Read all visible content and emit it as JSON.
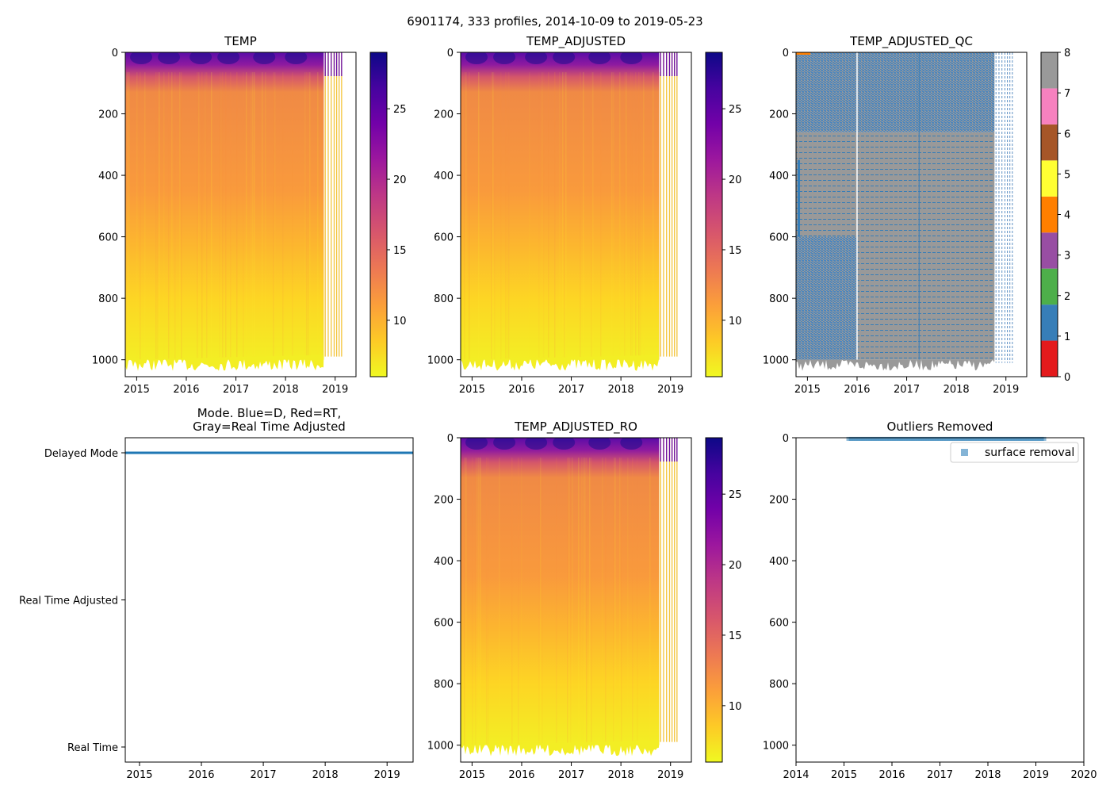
{
  "figure": {
    "suptitle": "6901174, 333 profiles, 2014-10-09 to 2019-05-23"
  },
  "colors": {
    "plasma": [
      "#f0f921",
      "#fdca26",
      "#fb9f3a",
      "#ed7953",
      "#d8576b",
      "#bd3786",
      "#9c179e",
      "#7201a8",
      "#46039f",
      "#0d0887"
    ],
    "qc": [
      "#e41a1c",
      "#377eb8",
      "#4daf4a",
      "#984ea3",
      "#ff7f00",
      "#ffff33",
      "#a65628",
      "#f781bf",
      "#999999"
    ],
    "mode_line": "#1f77b4",
    "outlier_marker": "#1f77b4"
  },
  "chart_data": [
    {
      "id": "temp",
      "type": "heatmap",
      "title": "TEMP",
      "xlim": [
        2014.77,
        2019.42
      ],
      "ylim": [
        1055,
        0
      ],
      "x_ticks": [
        2015,
        2016,
        2017,
        2018,
        2019
      ],
      "x_tick_labels": [
        "2015",
        "2016",
        "2017",
        "2018",
        "2019"
      ],
      "y_ticks": [
        0,
        200,
        400,
        600,
        800,
        1000
      ],
      "y_tick_labels": [
        "0",
        "200",
        "400",
        "600",
        "800",
        "1000"
      ],
      "colorbar": {
        "range": [
          6,
          29
        ],
        "ticks": [
          10,
          15,
          20,
          25
        ],
        "tick_labels": [
          "10",
          "15",
          "20",
          "25"
        ]
      },
      "data_end": 2018.77,
      "tail_profiles": [
        2018.8,
        2018.86,
        2018.92,
        2018.98,
        2019.03,
        2019.08,
        2019.13
      ],
      "bottom_depth": 1000
    },
    {
      "id": "temp-adjusted",
      "type": "heatmap",
      "title": "TEMP_ADJUSTED",
      "xlim": [
        2014.77,
        2019.42
      ],
      "ylim": [
        1055,
        0
      ],
      "x_ticks": [
        2015,
        2016,
        2017,
        2018,
        2019
      ],
      "x_tick_labels": [
        "2015",
        "2016",
        "2017",
        "2018",
        "2019"
      ],
      "y_ticks": [
        0,
        200,
        400,
        600,
        800,
        1000
      ],
      "y_tick_labels": [
        "0",
        "200",
        "400",
        "600",
        "800",
        "1000"
      ],
      "colorbar": {
        "range": [
          6,
          29
        ],
        "ticks": [
          10,
          15,
          20,
          25
        ],
        "tick_labels": [
          "10",
          "15",
          "20",
          "25"
        ]
      },
      "data_end": 2018.77,
      "tail_profiles": [
        2018.8,
        2018.86,
        2018.92,
        2018.98,
        2019.03,
        2019.08,
        2019.13
      ],
      "bottom_depth": 1000
    },
    {
      "id": "temp-adjusted-qc",
      "type": "heatmap",
      "title": "TEMP_ADJUSTED_QC",
      "xlim": [
        2014.77,
        2019.42
      ],
      "ylim": [
        1055,
        0
      ],
      "x_ticks": [
        2015,
        2016,
        2017,
        2018,
        2019
      ],
      "x_tick_labels": [
        "2015",
        "2016",
        "2017",
        "2018",
        "2019"
      ],
      "y_ticks": [
        0,
        200,
        400,
        600,
        800,
        1000
      ],
      "y_tick_labels": [
        "0",
        "200",
        "400",
        "600",
        "800",
        "1000"
      ],
      "colorbar": {
        "range": [
          0,
          8
        ],
        "ticks": [
          0,
          1,
          2,
          3,
          4,
          5,
          6,
          7,
          8
        ],
        "tick_labels": [
          "0",
          "1",
          "2",
          "3",
          "4",
          "5",
          "6",
          "7",
          "8"
        ]
      },
      "data_end": 2018.77,
      "tail_profiles": [
        2018.8,
        2018.86,
        2018.92,
        2018.98,
        2019.03,
        2019.08,
        2019.13
      ],
      "qc_regions": [
        {
          "x": [
            2014.77,
            2018.77
          ],
          "depth": [
            0,
            260
          ],
          "flag": "mixed-1-8"
        },
        {
          "x": [
            2014.77,
            2018.77
          ],
          "depth": [
            260,
            1000
          ],
          "flag": 8
        },
        {
          "x": [
            2014.77,
            2016.0
          ],
          "depth": [
            600,
            1000
          ],
          "flag": "mixed-1-8"
        }
      ]
    },
    {
      "id": "mode",
      "type": "line",
      "title_line1": "Mode. Blue=D, Red=RT,",
      "title_line2": "Gray=Real Time Adjusted",
      "xlim": [
        2014.77,
        2019.42
      ],
      "x_ticks": [
        2015,
        2016,
        2017,
        2018,
        2019
      ],
      "x_tick_labels": [
        "2015",
        "2016",
        "2017",
        "2018",
        "2019"
      ],
      "categories": [
        "Delayed Mode",
        "Real Time Adjusted",
        "Real Time"
      ],
      "series": [
        {
          "name": "Delayed Mode",
          "x": [
            2014.77,
            2019.42
          ],
          "category": "Delayed Mode"
        }
      ]
    },
    {
      "id": "temp-adjusted-ro",
      "type": "heatmap",
      "title": "TEMP_ADJUSTED_RO",
      "xlim": [
        2014.77,
        2019.42
      ],
      "ylim": [
        1055,
        0
      ],
      "x_ticks": [
        2015,
        2016,
        2017,
        2018,
        2019
      ],
      "x_tick_labels": [
        "2015",
        "2016",
        "2017",
        "2018",
        "2019"
      ],
      "y_ticks": [
        0,
        200,
        400,
        600,
        800,
        1000
      ],
      "y_tick_labels": [
        "0",
        "200",
        "400",
        "600",
        "800",
        "1000"
      ],
      "colorbar": {
        "range": [
          6,
          29
        ],
        "ticks": [
          10,
          15,
          20,
          25
        ],
        "tick_labels": [
          "10",
          "15",
          "20",
          "25"
        ]
      },
      "data_end": 2018.77,
      "tail_profiles": [
        2018.8,
        2018.86,
        2018.92,
        2018.98,
        2019.03,
        2019.08,
        2019.13
      ],
      "bottom_depth": 1000
    },
    {
      "id": "outliers",
      "type": "scatter",
      "title": "Outliers Removed",
      "xlim": [
        2014,
        2020
      ],
      "ylim": [
        1055,
        0
      ],
      "x_ticks": [
        2014,
        2015,
        2016,
        2017,
        2018,
        2019,
        2020
      ],
      "x_tick_labels": [
        "2014",
        "2015",
        "2016",
        "2017",
        "2018",
        "2019",
        "2020"
      ],
      "y_ticks": [
        0,
        200,
        400,
        600,
        800,
        1000
      ],
      "y_tick_labels": [
        "0",
        "200",
        "400",
        "600",
        "800",
        "1000"
      ],
      "legend": {
        "label": "surface removal",
        "placement": "top-right"
      },
      "series": [
        {
          "name": "surface removal",
          "x_range": [
            2015.1,
            2019.2
          ],
          "depth": 5
        }
      ]
    }
  ]
}
